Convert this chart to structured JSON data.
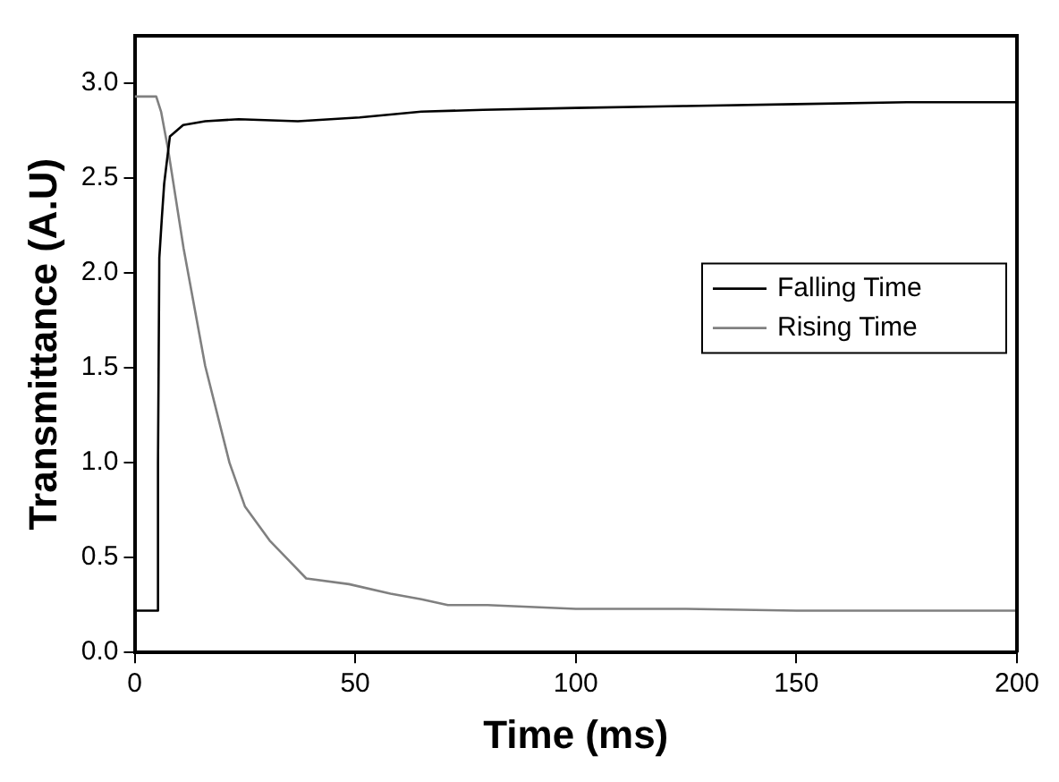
{
  "chart_data": {
    "type": "line",
    "xlabel": "Time (ms)",
    "ylabel": "Transmittance (A.U)",
    "xlim": [
      0,
      200
    ],
    "xticks": [
      0,
      50,
      100,
      150,
      200
    ],
    "ylim": [
      0,
      3.25
    ],
    "yticks": [
      {
        "value": 0,
        "label": "0.0"
      },
      0.5,
      {
        "value": 1,
        "label": "1.0"
      },
      1.5,
      {
        "value": 2,
        "label": "2.0"
      },
      2.5,
      {
        "value": 3,
        "label": "3.0"
      }
    ],
    "grid": false,
    "legend": "right",
    "marker": "none",
    "line_style": "solid",
    "series": [
      {
        "name": "Falling Time",
        "color": "#000000",
        "x": [
          0,
          5.2,
          5.3,
          5.6,
          6.2,
          6.7,
          8,
          11,
          16,
          23.6,
          37,
          51,
          65,
          79,
          100,
          125,
          150,
          175,
          200
        ],
        "values": [
          0.22,
          0.22,
          1.0,
          2.08,
          2.3,
          2.47,
          2.72,
          2.78,
          2.8,
          2.81,
          2.8,
          2.82,
          2.85,
          2.86,
          2.87,
          2.88,
          2.89,
          2.9,
          2.9
        ]
      },
      {
        "name": "Rising Time",
        "color": "#808080",
        "x": [
          0,
          4.9,
          6,
          7.6,
          11.1,
          16,
          21.5,
          25,
          30.6,
          36,
          38.9,
          48.6,
          58,
          65,
          71,
          80,
          100,
          125,
          150,
          175,
          200
        ],
        "values": [
          2.93,
          2.93,
          2.85,
          2.65,
          2.13,
          1.51,
          1.0,
          0.77,
          0.59,
          0.46,
          0.39,
          0.36,
          0.31,
          0.28,
          0.25,
          0.25,
          0.23,
          0.23,
          0.22,
          0.22,
          0.22
        ]
      }
    ]
  }
}
